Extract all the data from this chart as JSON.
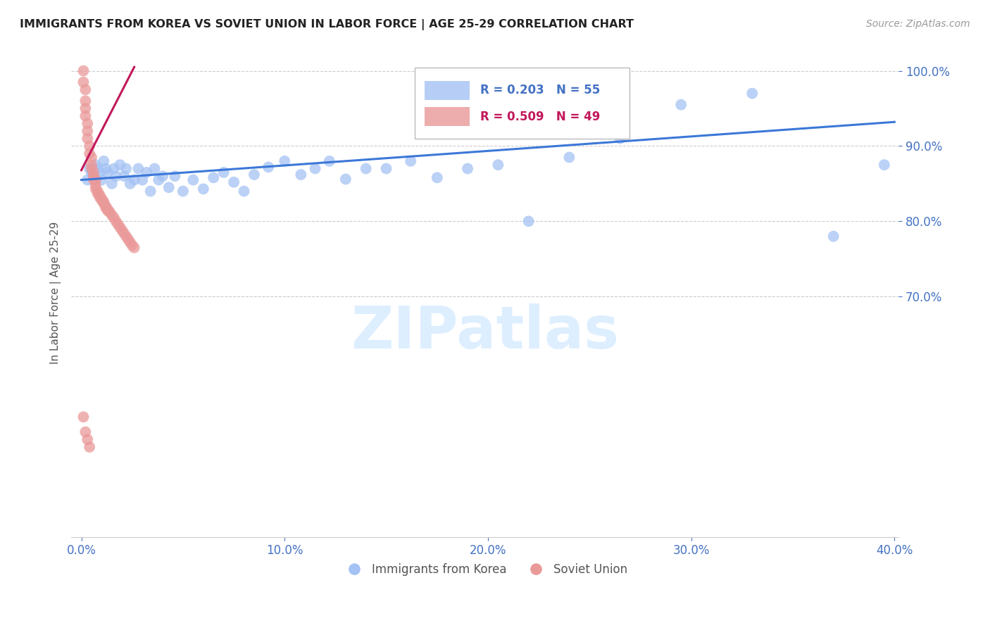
{
  "title": "IMMIGRANTS FROM KOREA VS SOVIET UNION IN LABOR FORCE | AGE 25-29 CORRELATION CHART",
  "source": "Source: ZipAtlas.com",
  "ylabel": "In Labor Force | Age 25-29",
  "korea_R": 0.203,
  "korea_N": 55,
  "soviet_R": 0.509,
  "soviet_N": 49,
  "xlim": [
    -0.005,
    0.402
  ],
  "ylim": [
    0.38,
    1.03
  ],
  "yticks": [
    1.0,
    0.9,
    0.8,
    0.7
  ],
  "xticks": [
    0.0,
    0.1,
    0.2,
    0.3,
    0.4
  ],
  "korea_color": "#a4c2f4",
  "soviet_color": "#ea9999",
  "korea_line_color": "#3c78d8",
  "soviet_line_color": "#c2185b",
  "axis_color": "#4472c4",
  "watermark_color": "#ddeeff",
  "korea_x": [
    0.003,
    0.004,
    0.005,
    0.006,
    0.007,
    0.008,
    0.009,
    0.01,
    0.011,
    0.012,
    0.013,
    0.015,
    0.016,
    0.017,
    0.019,
    0.021,
    0.022,
    0.024,
    0.026,
    0.028,
    0.03,
    0.032,
    0.034,
    0.036,
    0.038,
    0.04,
    0.043,
    0.046,
    0.05,
    0.055,
    0.06,
    0.065,
    0.07,
    0.075,
    0.08,
    0.085,
    0.092,
    0.1,
    0.108,
    0.115,
    0.122,
    0.13,
    0.14,
    0.15,
    0.162,
    0.175,
    0.19,
    0.205,
    0.22,
    0.24,
    0.265,
    0.295,
    0.33,
    0.37,
    0.395
  ],
  "korea_y": [
    0.855,
    0.87,
    0.865,
    0.86,
    0.875,
    0.87,
    0.865,
    0.855,
    0.88,
    0.87,
    0.865,
    0.85,
    0.87,
    0.86,
    0.875,
    0.86,
    0.87,
    0.85,
    0.855,
    0.87,
    0.855,
    0.865,
    0.84,
    0.87,
    0.855,
    0.86,
    0.845,
    0.86,
    0.84,
    0.855,
    0.843,
    0.858,
    0.865,
    0.852,
    0.84,
    0.862,
    0.872,
    0.88,
    0.862,
    0.87,
    0.88,
    0.856,
    0.87,
    0.87,
    0.88,
    0.858,
    0.87,
    0.875,
    0.8,
    0.885,
    0.91,
    0.955,
    0.97,
    0.78,
    0.875
  ],
  "soviet_x": [
    0.001,
    0.001,
    0.002,
    0.002,
    0.002,
    0.002,
    0.003,
    0.003,
    0.003,
    0.004,
    0.004,
    0.005,
    0.005,
    0.005,
    0.006,
    0.006,
    0.006,
    0.007,
    0.007,
    0.007,
    0.008,
    0.008,
    0.009,
    0.009,
    0.01,
    0.01,
    0.011,
    0.011,
    0.012,
    0.012,
    0.013,
    0.013,
    0.014,
    0.015,
    0.016,
    0.017,
    0.018,
    0.019,
    0.02,
    0.021,
    0.022,
    0.023,
    0.024,
    0.025,
    0.026,
    0.001,
    0.002,
    0.003,
    0.004
  ],
  "soviet_y": [
    1.0,
    0.985,
    0.975,
    0.96,
    0.95,
    0.94,
    0.93,
    0.92,
    0.91,
    0.9,
    0.89,
    0.885,
    0.875,
    0.87,
    0.865,
    0.86,
    0.855,
    0.855,
    0.848,
    0.843,
    0.84,
    0.837,
    0.835,
    0.832,
    0.83,
    0.828,
    0.826,
    0.824,
    0.82,
    0.818,
    0.816,
    0.814,
    0.812,
    0.808,
    0.805,
    0.8,
    0.796,
    0.792,
    0.788,
    0.784,
    0.78,
    0.776,
    0.772,
    0.768,
    0.765,
    0.54,
    0.52,
    0.51,
    0.5
  ],
  "korea_line_x": [
    0.0,
    0.4
  ],
  "korea_line_y": [
    0.855,
    0.932
  ],
  "soviet_line_x": [
    0.0,
    0.026
  ],
  "soviet_line_y": [
    0.868,
    1.005
  ]
}
